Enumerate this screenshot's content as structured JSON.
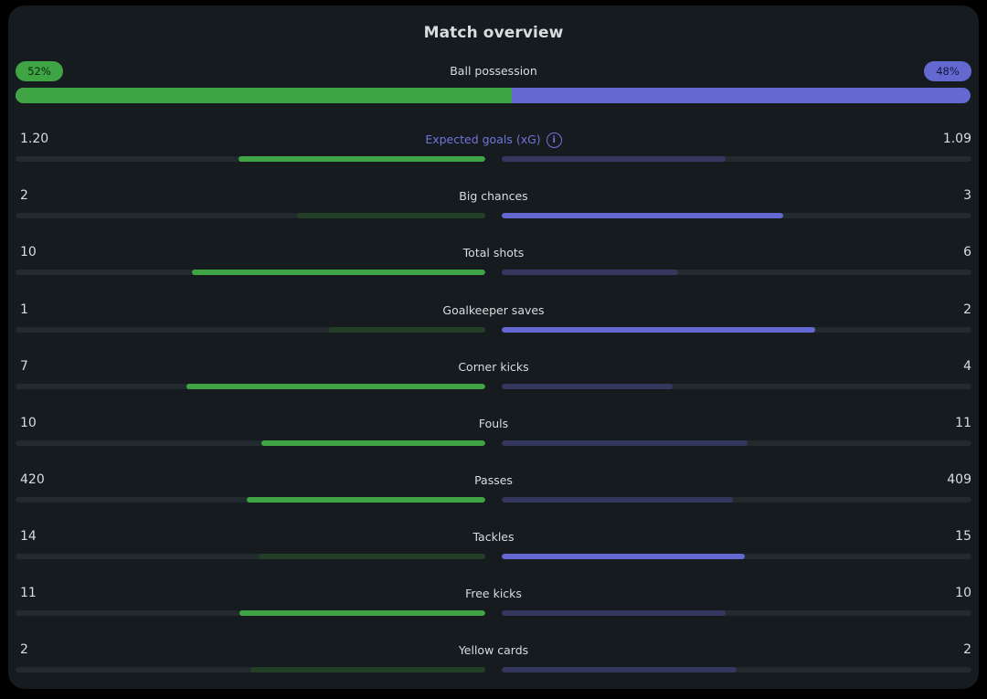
{
  "title": "Match overview",
  "possession": {
    "label": "Ball possession",
    "home_label": "52%",
    "away_label": "48%",
    "home_pct": 52,
    "away_pct": 48
  },
  "colors": {
    "home": "#3ea444",
    "away": "#6469d1",
    "home_dim": "#243f28",
    "away_dim": "#34385e",
    "link": "#7175de"
  },
  "stats": [
    {
      "label": "Expected goals (xG)",
      "home": "1.20",
      "away": "1.09",
      "home_frac": 0.525,
      "away_frac": 0.477,
      "highlight": "home",
      "info": "i"
    },
    {
      "label": "Big chances",
      "home": "2",
      "away": "3",
      "home_frac": 0.4,
      "away_frac": 0.6,
      "highlight": "away"
    },
    {
      "label": "Total shots",
      "home": "10",
      "away": "6",
      "home_frac": 0.625,
      "away_frac": 0.375,
      "highlight": "home"
    },
    {
      "label": "Goalkeeper saves",
      "home": "1",
      "away": "2",
      "home_frac": 0.333,
      "away_frac": 0.667,
      "highlight": "away"
    },
    {
      "label": "Corner kicks",
      "home": "7",
      "away": "4",
      "home_frac": 0.636,
      "away_frac": 0.364,
      "highlight": "home"
    },
    {
      "label": "Fouls",
      "home": "10",
      "away": "11",
      "home_frac": 0.476,
      "away_frac": 0.524,
      "highlight": "home"
    },
    {
      "label": "Passes",
      "home": "420",
      "away": "409",
      "home_frac": 0.507,
      "away_frac": 0.493,
      "highlight": "home"
    },
    {
      "label": "Tackles",
      "home": "14",
      "away": "15",
      "home_frac": 0.483,
      "away_frac": 0.517,
      "highlight": "away"
    },
    {
      "label": "Free kicks",
      "home": "11",
      "away": "10",
      "home_frac": 0.524,
      "away_frac": 0.476,
      "highlight": "home"
    },
    {
      "label": "Yellow cards",
      "home": "2",
      "away": "2",
      "home_frac": 0.5,
      "away_frac": 0.5,
      "highlight": "none"
    }
  ]
}
